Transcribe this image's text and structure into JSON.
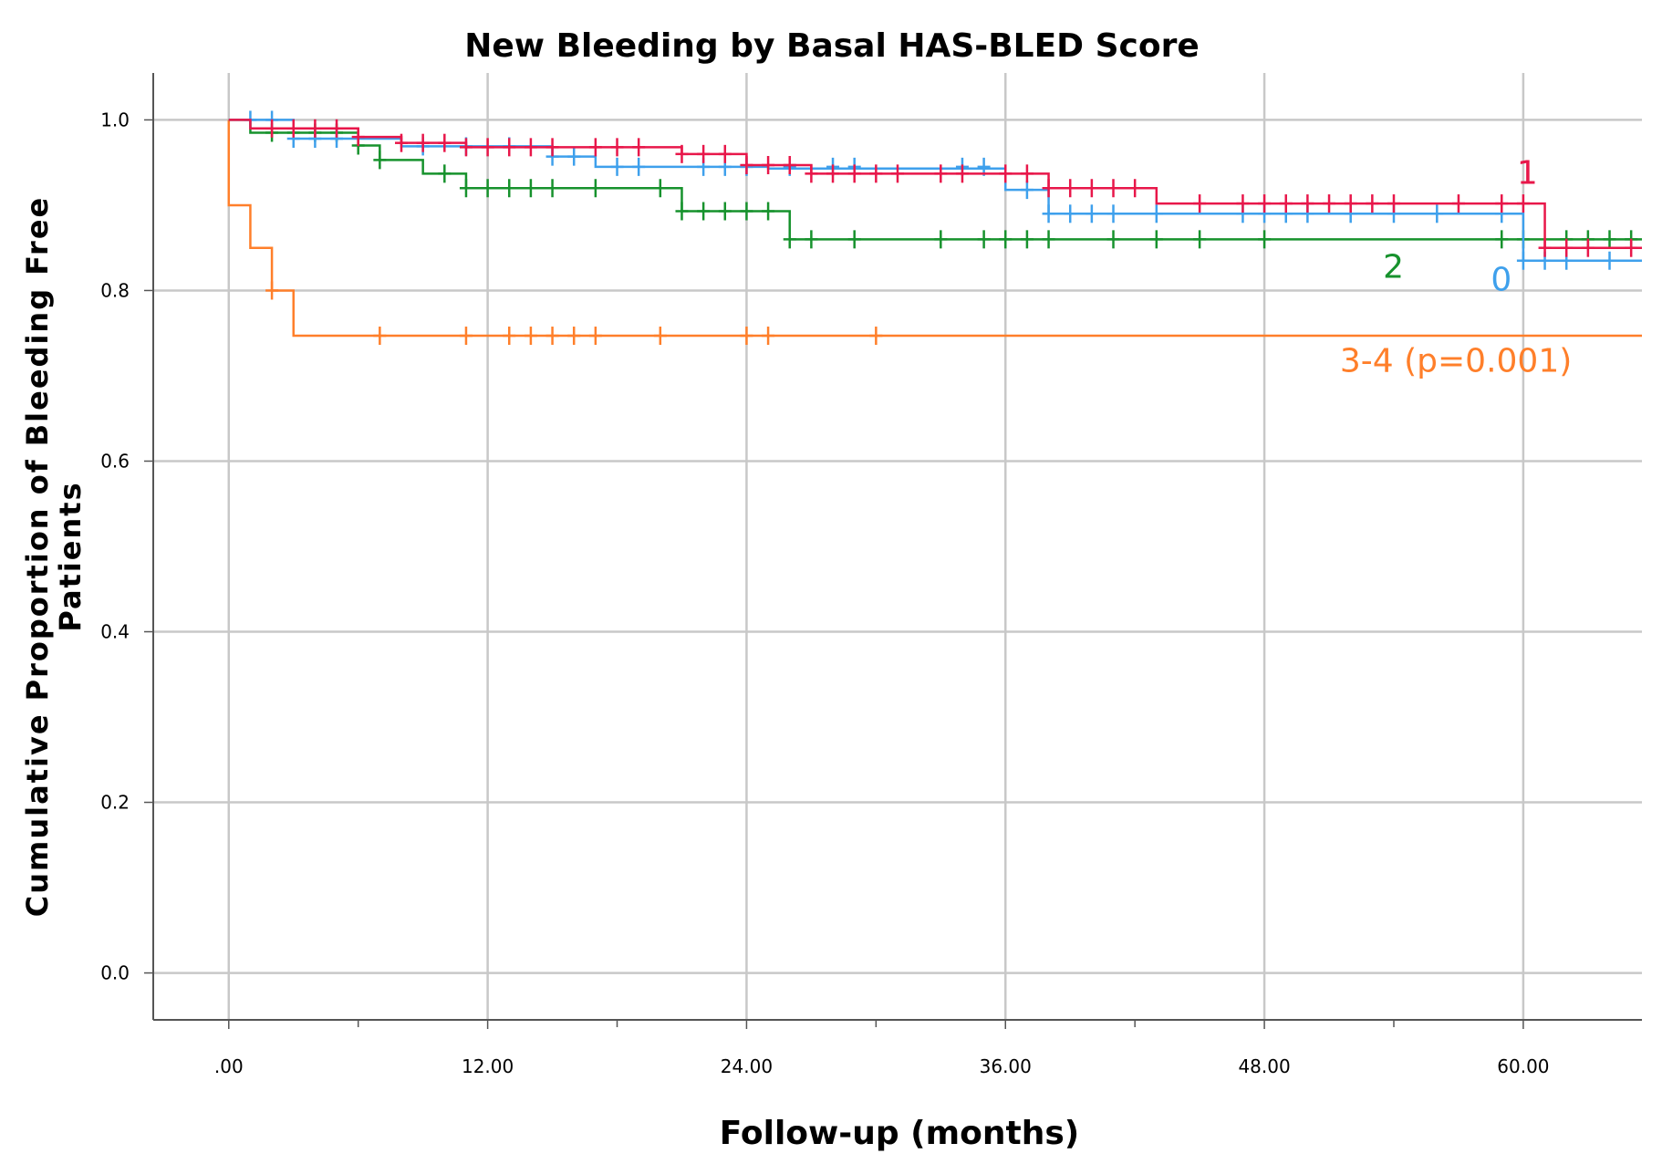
{
  "chart_data": {
    "type": "line",
    "title": "New Bleeding by Basal HAS-BLED Score",
    "xlabel": "Follow-up (months)",
    "ylabel_lines": [
      "Cumulative Proportion of Bleeding Free",
      "Patients"
    ],
    "xlim": [
      -3.5,
      65.5
    ],
    "ylim": [
      -0.055,
      1.055
    ],
    "x_ticks": [
      0,
      12,
      24,
      36,
      48,
      60
    ],
    "x_tick_labels": [
      ".00",
      "12.00",
      "24.00",
      "36.00",
      "48.00",
      "60.00"
    ],
    "x_minor_ticks": [
      6,
      18,
      30,
      42,
      54
    ],
    "y_ticks": [
      0,
      0.2,
      0.4,
      0.6,
      0.8,
      1.0
    ],
    "y_tick_labels": [
      "0.0",
      "0.2",
      "0.4",
      "0.6",
      "0.8",
      "1.0"
    ],
    "grid": true,
    "x_max_data": 65.5,
    "series": [
      {
        "name": "3-4 (p=0.001)",
        "color": "#ff7f2a",
        "steps": [
          [
            0,
            1.0
          ],
          [
            0,
            0.9
          ],
          [
            1,
            0.85
          ],
          [
            2,
            0.8
          ],
          [
            3,
            0.747
          ]
        ],
        "censored": [
          [
            2,
            0.8
          ],
          [
            7,
            0.747
          ],
          [
            11,
            0.747
          ],
          [
            13,
            0.747
          ],
          [
            14,
            0.747
          ],
          [
            15,
            0.747
          ],
          [
            16,
            0.747
          ],
          [
            17,
            0.747
          ],
          [
            20,
            0.747
          ],
          [
            24,
            0.747
          ],
          [
            25,
            0.747
          ],
          [
            30,
            0.747
          ]
        ],
        "label_xy": [
          51.5,
          0.705
        ]
      },
      {
        "name": "2",
        "color": "#17922d",
        "steps": [
          [
            0,
            1.0
          ],
          [
            1,
            0.985
          ],
          [
            6,
            0.97
          ],
          [
            7,
            0.953
          ],
          [
            9,
            0.937
          ],
          [
            11,
            0.92
          ],
          [
            21,
            0.893
          ],
          [
            26,
            0.86
          ]
        ],
        "censored": [
          [
            2,
            0.985
          ],
          [
            3,
            0.985
          ],
          [
            4,
            0.985
          ],
          [
            5,
            0.985
          ],
          [
            6,
            0.97
          ],
          [
            7,
            0.953
          ],
          [
            10,
            0.937
          ],
          [
            11,
            0.92
          ],
          [
            12,
            0.92
          ],
          [
            13,
            0.92
          ],
          [
            14,
            0.92
          ],
          [
            15,
            0.92
          ],
          [
            17,
            0.92
          ],
          [
            20,
            0.92
          ],
          [
            21,
            0.893
          ],
          [
            22,
            0.893
          ],
          [
            23,
            0.893
          ],
          [
            24,
            0.893
          ],
          [
            25,
            0.893
          ],
          [
            26,
            0.86
          ],
          [
            27,
            0.86
          ],
          [
            29,
            0.86
          ],
          [
            33,
            0.86
          ],
          [
            35,
            0.86
          ],
          [
            36,
            0.86
          ],
          [
            37,
            0.86
          ],
          [
            38,
            0.86
          ],
          [
            41,
            0.86
          ],
          [
            43,
            0.86
          ],
          [
            45,
            0.86
          ],
          [
            48,
            0.86
          ],
          [
            59,
            0.86
          ],
          [
            60,
            0.86
          ],
          [
            62,
            0.86
          ],
          [
            63,
            0.86
          ],
          [
            64,
            0.86
          ],
          [
            65,
            0.86
          ]
        ],
        "label_xy": [
          53.5,
          0.815
        ]
      },
      {
        "name": "0",
        "color": "#3ea0ec",
        "steps": [
          [
            0,
            1.0
          ],
          [
            3,
            0.978
          ],
          [
            8,
            0.969
          ],
          [
            15,
            0.957
          ],
          [
            17,
            0.945
          ],
          [
            25,
            0.943
          ],
          [
            36,
            0.918
          ],
          [
            38,
            0.89
          ],
          [
            60,
            0.835
          ]
        ],
        "censored": [
          [
            1,
            1.0
          ],
          [
            2,
            1.0
          ],
          [
            3,
            0.978
          ],
          [
            4,
            0.978
          ],
          [
            5,
            0.978
          ],
          [
            9,
            0.969
          ],
          [
            11,
            0.969
          ],
          [
            13,
            0.969
          ],
          [
            15,
            0.957
          ],
          [
            16,
            0.957
          ],
          [
            18,
            0.945
          ],
          [
            19,
            0.945
          ],
          [
            22,
            0.945
          ],
          [
            23,
            0.945
          ],
          [
            24,
            0.945
          ],
          [
            26,
            0.945
          ],
          [
            28,
            0.945
          ],
          [
            29,
            0.945
          ],
          [
            34,
            0.945
          ],
          [
            35,
            0.945
          ],
          [
            37,
            0.918
          ],
          [
            38,
            0.89
          ],
          [
            39,
            0.89
          ],
          [
            40,
            0.89
          ],
          [
            41,
            0.89
          ],
          [
            43,
            0.89
          ],
          [
            47,
            0.89
          ],
          [
            48,
            0.89
          ],
          [
            49,
            0.89
          ],
          [
            50,
            0.89
          ],
          [
            52,
            0.89
          ],
          [
            54,
            0.89
          ],
          [
            56,
            0.89
          ],
          [
            59,
            0.89
          ],
          [
            60,
            0.835
          ],
          [
            61,
            0.835
          ],
          [
            62,
            0.835
          ],
          [
            64,
            0.835
          ]
        ],
        "label_xy": [
          58.5,
          0.8
        ]
      },
      {
        "name": "1",
        "color": "#e8174a",
        "steps": [
          [
            0,
            1.0
          ],
          [
            1,
            0.99
          ],
          [
            6,
            0.98
          ],
          [
            8,
            0.973
          ],
          [
            11,
            0.968
          ],
          [
            21,
            0.96
          ],
          [
            24,
            0.947
          ],
          [
            27,
            0.937
          ],
          [
            38,
            0.92
          ],
          [
            43,
            0.902
          ],
          [
            61,
            0.85
          ]
        ],
        "censored": [
          [
            2,
            0.99
          ],
          [
            3,
            0.99
          ],
          [
            4,
            0.99
          ],
          [
            5,
            0.99
          ],
          [
            6,
            0.98
          ],
          [
            8,
            0.973
          ],
          [
            9,
            0.973
          ],
          [
            10,
            0.973
          ],
          [
            11,
            0.968
          ],
          [
            12,
            0.968
          ],
          [
            13,
            0.968
          ],
          [
            14,
            0.968
          ],
          [
            15,
            0.968
          ],
          [
            17,
            0.968
          ],
          [
            18,
            0.968
          ],
          [
            19,
            0.968
          ],
          [
            21,
            0.96
          ],
          [
            22,
            0.96
          ],
          [
            23,
            0.96
          ],
          [
            24,
            0.947
          ],
          [
            25,
            0.947
          ],
          [
            26,
            0.947
          ],
          [
            27,
            0.937
          ],
          [
            28,
            0.937
          ],
          [
            29,
            0.937
          ],
          [
            30,
            0.937
          ],
          [
            31,
            0.937
          ],
          [
            33,
            0.937
          ],
          [
            34,
            0.937
          ],
          [
            36,
            0.937
          ],
          [
            37,
            0.937
          ],
          [
            38,
            0.92
          ],
          [
            39,
            0.92
          ],
          [
            40,
            0.92
          ],
          [
            41,
            0.92
          ],
          [
            42,
            0.92
          ],
          [
            45,
            0.902
          ],
          [
            47,
            0.902
          ],
          [
            48,
            0.902
          ],
          [
            49,
            0.902
          ],
          [
            50,
            0.902
          ],
          [
            51,
            0.902
          ],
          [
            52,
            0.902
          ],
          [
            53,
            0.902
          ],
          [
            54,
            0.902
          ],
          [
            57,
            0.902
          ],
          [
            59,
            0.902
          ],
          [
            60,
            0.902
          ],
          [
            61,
            0.85
          ],
          [
            62,
            0.85
          ],
          [
            63,
            0.85
          ],
          [
            65,
            0.85
          ]
        ],
        "label_xy": [
          59.7,
          0.925
        ]
      }
    ]
  }
}
